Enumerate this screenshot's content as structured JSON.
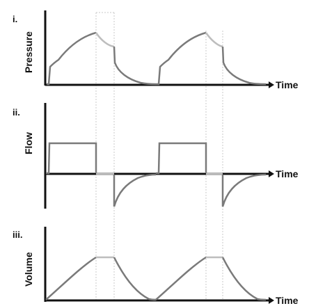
{
  "panels": [
    {
      "letter": "i.",
      "ylabel": "Pressure",
      "xlabel": "Time"
    },
    {
      "letter": "ii.",
      "ylabel": "Flow",
      "xlabel": "Time"
    },
    {
      "letter": "iii.",
      "ylabel": "Volume",
      "xlabel": "Time"
    }
  ],
  "colors": {
    "axis": "#111111",
    "inspiration": "#7a7a7a",
    "plateau": "#bdbdbd",
    "expiration": "#7a7a7a",
    "guide": "#c8c8c8"
  }
}
